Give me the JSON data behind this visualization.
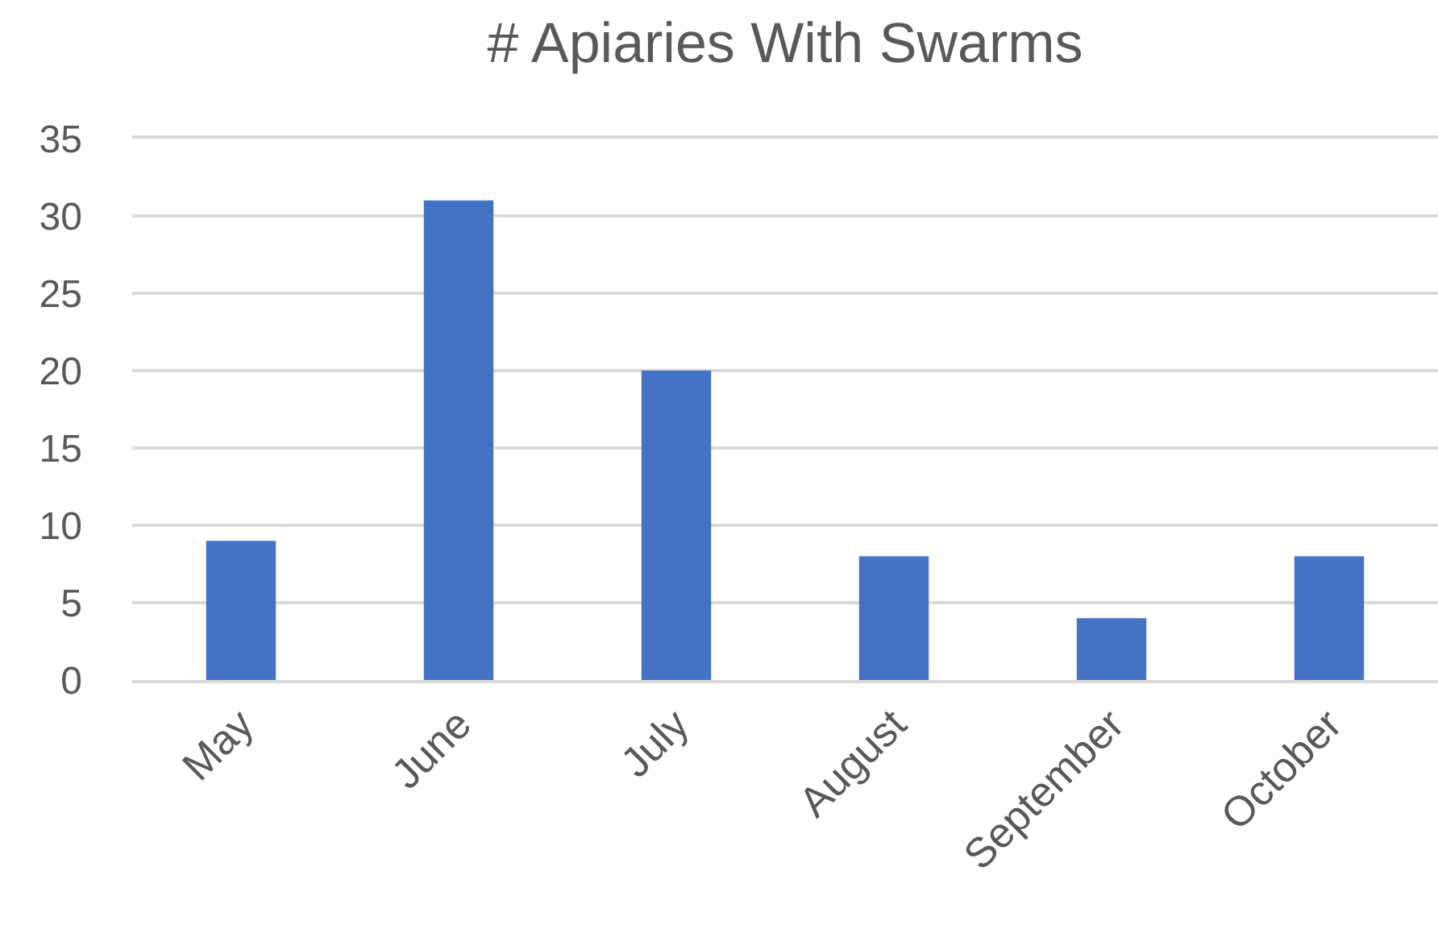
{
  "chart_data": {
    "type": "bar",
    "title": "# Apiaries With Swarms",
    "categories": [
      "May",
      "June",
      "July",
      "August",
      "September",
      "October"
    ],
    "values": [
      9,
      31,
      20,
      8,
      4,
      8
    ],
    "color": "#4472c4",
    "ylim": [
      0,
      35
    ],
    "yticks": [
      0,
      5,
      10,
      15,
      20,
      25,
      30,
      35
    ],
    "grid": "y",
    "legend": false
  }
}
